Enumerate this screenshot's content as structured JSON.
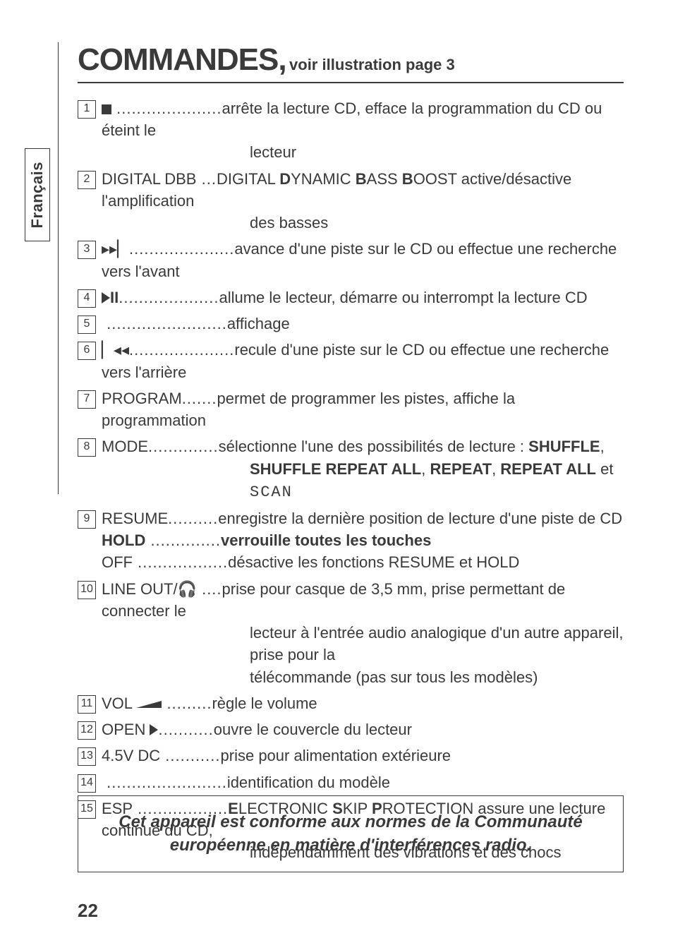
{
  "section": {
    "title": "COMMANDES,",
    "subtitle": " voir illustration page 3"
  },
  "sidetab": "Français",
  "entries": [
    {
      "num": "1",
      "label_html": "<span class='stop-square'></span>",
      "dots": " .....................",
      "desc": "arrête la lecture CD, efface la programmation du CD ou éteint le",
      "cont": "lecteur"
    },
    {
      "num": "2",
      "label": "DIGITAL DBB",
      "dots": " ...",
      "desc_html": "DIGITAL <b>D</b>YNAMIC <b>B</b>ASS <b>B</b>OOST active/désactive l'amplification",
      "cont": "des basses"
    },
    {
      "num": "3",
      "label_html": "<span class='glyph'>▸▸▏</span>",
      "dots": ".....................",
      "desc": "avance d'une piste sur le CD ou effectue une recherche vers l'avant"
    },
    {
      "num": "4",
      "label_html": "<span class='play-tri'></span><b>II</b>",
      "dots": "....................",
      "desc": "allume le lecteur, démarre ou interrompt la lecture CD"
    },
    {
      "num": "5",
      "label": "",
      "dots": " ........................",
      "desc": "affichage"
    },
    {
      "num": "6",
      "label_html": "<span class='glyph'>▏◂◂</span>",
      "dots": ".....................",
      "desc": "recule d'une piste sur le CD ou effectue une recherche vers l'arrière"
    },
    {
      "num": "7",
      "label": "PROGRAM",
      "dots": ".......",
      "desc": "permet de programmer les pistes, affiche la programmation"
    },
    {
      "num": "8",
      "label": "MODE",
      "dots": "..............",
      "desc_html": "sélectionne l'une des possibilités de lecture : <b>SHUFFLE</b>,",
      "cont_html": "<b>SHUFFLE REPEAT ALL</b>, <b>REPEAT</b>, <b>REPEAT ALL</b> et <span class='digital7'>SCAN</span>"
    },
    {
      "num": "9",
      "lines": [
        {
          "label": "RESUME",
          "dots": "..........",
          "desc": "enregistre la dernière position de lecture d'une piste de CD"
        },
        {
          "label_html": "<b>HOLD</b>",
          "dots": " ..............",
          "desc_html": "<b>verrouille toutes les touches</b>"
        },
        {
          "label": "OFF",
          "dots": " ..................",
          "desc": "désactive les fonctions RESUME et HOLD"
        }
      ]
    },
    {
      "num": "10",
      "label_html": "LINE OUT/🎧",
      "dots": " ....",
      "desc": "prise pour casque de 3,5 mm, prise permettant de connecter le",
      "cont": "lecteur à l'entrée audio analogique d'un autre appareil, prise pour la",
      "cont2": "télécommande (pas sur tous les modèles)"
    },
    {
      "num": "11",
      "label_html": "VOL <svg width='36' height='12' style='vertical-align:-1px'><polygon points='0,10 36,0 36,10' fill='#3a3a3a'/></svg>",
      "dots": " .........",
      "desc": "règle le volume"
    },
    {
      "num": "12",
      "label_html": "OPEN <span class='play-tri'></span>",
      "dots": "...........",
      "desc": "ouvre le couvercle du lecteur"
    },
    {
      "num": "13",
      "label": "4.5V DC",
      "dots": " ...........",
      "desc": "prise pour alimentation extérieure"
    },
    {
      "num": "14",
      "label": "",
      "dots": " ........................",
      "desc": "identification du modèle"
    },
    {
      "num": "15",
      "label": "ESP",
      "dots": " ..................",
      "desc_html": "<b>E</b>LECTRONIC <b>S</b>KIP <b>P</b>ROTECTION assure une lecture continue du CD,",
      "cont": "indépendamment des vibrations et des chocs"
    }
  ],
  "footer": {
    "line1": "Cet appareil est conforme aux normes de la Communauté",
    "line2": "européenne en matière d'interférences radio."
  },
  "page_number": "22"
}
